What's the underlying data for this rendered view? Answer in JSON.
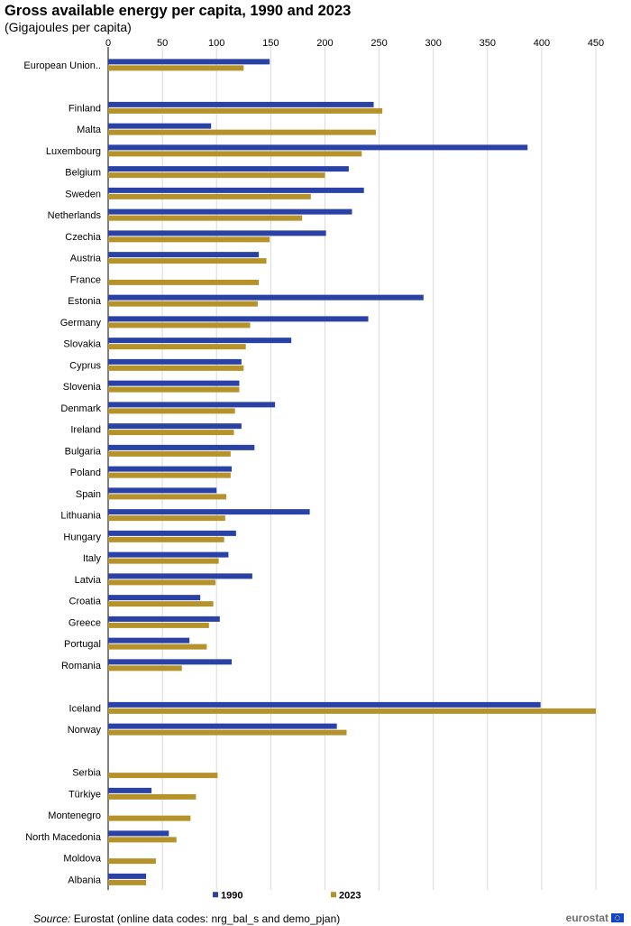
{
  "header": {
    "title": "Gross available energy per capita, 1990 and 2023",
    "subtitle": "(Gigajoules per capita)"
  },
  "footer": {
    "source_label": "Source:",
    "source_text": "Eurostat (online data codes: nrg_bal_s and demo_pjan)",
    "logo_text": "eurostat"
  },
  "colors": {
    "series_1990": "#2a42a6",
    "series_2023": "#b5922a",
    "grid": "#d9d9d9",
    "axis": "#000000"
  },
  "chart_data": {
    "type": "bar",
    "orientation": "horizontal",
    "title": "Gross available energy per capita, 1990 and 2023",
    "subtitle": "(Gigajoules per capita)",
    "xlim": [
      0,
      450
    ],
    "x_ticks": [
      0,
      50,
      100,
      150,
      200,
      250,
      300,
      350,
      400,
      450
    ],
    "x_axis_position": "top",
    "grid": true,
    "legend_position": "bottom",
    "categories": [
      "European Union..",
      "",
      "Finland",
      "Malta",
      "Luxembourg",
      "Belgium",
      "Sweden",
      "Netherlands",
      "Czechia",
      "Austria",
      "France",
      "Estonia",
      "Germany",
      "Slovakia",
      "Cyprus",
      "Slovenia",
      "Denmark",
      "Ireland",
      "Bulgaria",
      "Poland",
      "Spain",
      "Lithuania",
      "Hungary",
      "Italy",
      "Latvia",
      "Croatia",
      "Greece",
      "Portugal",
      "Romania",
      "",
      "Iceland",
      "Norway",
      "",
      "Serbia",
      "Türkiye",
      "Montenegro",
      "North Macedonia",
      "Moldova",
      "Albania"
    ],
    "series": [
      {
        "name": "1990",
        "values": [
          149,
          null,
          245,
          95,
          387,
          222,
          236,
          225,
          201,
          139,
          null,
          291,
          240,
          169,
          123,
          121,
          154,
          123,
          135,
          114,
          100,
          186,
          118,
          111,
          133,
          85,
          103,
          75,
          114,
          null,
          399,
          211,
          null,
          null,
          40,
          null,
          56,
          null,
          35
        ]
      },
      {
        "name": "2023",
        "values": [
          125,
          null,
          253,
          247,
          234,
          200,
          187,
          179,
          149,
          146,
          139,
          138,
          131,
          127,
          125,
          121,
          117,
          116,
          113,
          113,
          109,
          108,
          107,
          102,
          99,
          97,
          93,
          91,
          68,
          null,
          450,
          220,
          null,
          101,
          81,
          76,
          63,
          44,
          35
        ]
      }
    ]
  }
}
